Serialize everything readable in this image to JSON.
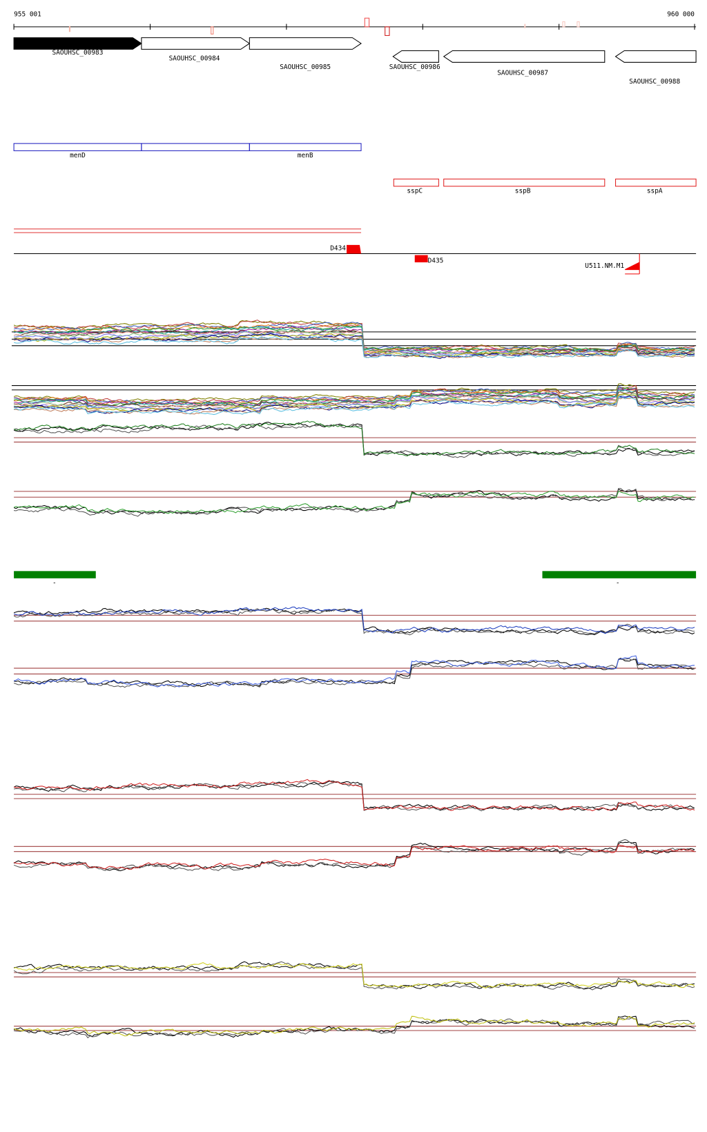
{
  "ruler": {
    "start": "955 001",
    "end": "960 000"
  },
  "genes": [
    {
      "label": "SAOUHSC_00983"
    },
    {
      "label": "SAOUHSC_00984"
    },
    {
      "label": "SAOUHSC_00985"
    },
    {
      "label": "SAOUHSC_00986"
    },
    {
      "label": "SAOUHSC_00987"
    },
    {
      "label": "SAOUHSC_00988"
    }
  ],
  "annotations": {
    "blue": [
      "menD",
      "menB"
    ],
    "red": [
      "sspC",
      "sspB",
      "sspA"
    ]
  },
  "sites": [
    "D434",
    "D435",
    "U511.NM.M1"
  ],
  "green_bars": [
    "-",
    "-"
  ]
}
